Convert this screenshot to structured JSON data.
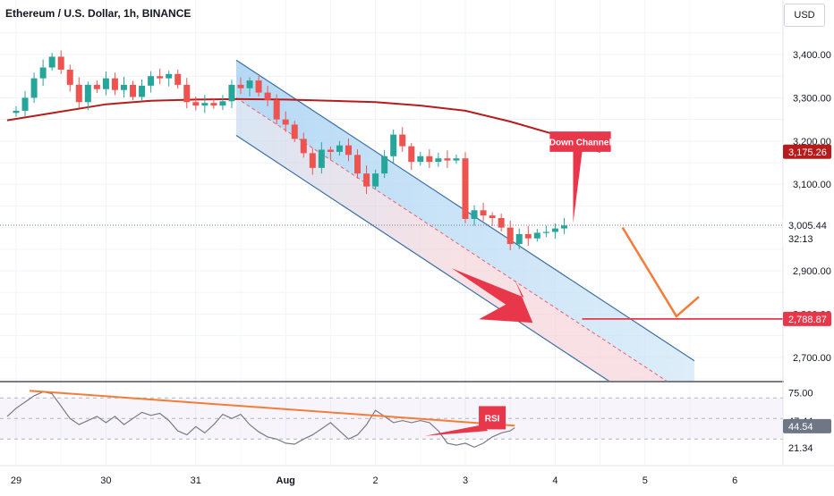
{
  "header": {
    "symbol_title": "Ethereum / U.S. Dollar, 1h, BINANCE",
    "currency_button": "USD"
  },
  "colors": {
    "bull": "#26a69a",
    "bear": "#ef5350",
    "ma": "#b71c1c",
    "channel": "#3a6ea5",
    "annotation_red": "#e8374a",
    "orange": "#f57c37",
    "rsi_line": "#787b86"
  },
  "chart_data": [
    {
      "type": "candlestick",
      "title": "Ethereum / U.S. Dollar, 1h, BINANCE",
      "x_tick_labels": [
        "29",
        "30",
        "31",
        "Aug",
        "2",
        "3",
        "4",
        "5",
        "6"
      ],
      "y_tick_labels": [
        "3,400.00",
        "3,300.00",
        "3,200.00",
        "3,100.00",
        "2,900.00",
        "2,800.00",
        "2,700.00"
      ],
      "y_ticks": [
        3400,
        3300,
        3200,
        3100,
        2900,
        2800,
        2700
      ],
      "ylim": [
        2645,
        3525
      ],
      "x_range_days": [
        29.0,
        37.0
      ],
      "grid": true,
      "price_labels": [
        {
          "text": "3,175.26",
          "value": 3175.26,
          "role": "moving-average"
        },
        {
          "text": "3,005.44",
          "value": 3005.44,
          "role": "last-price"
        },
        {
          "text": "32:13",
          "value": 3005.44,
          "role": "countdown"
        },
        {
          "text": "2,788.87",
          "value": 2788.87,
          "role": "target"
        }
      ],
      "target_level": 2788.87,
      "last_price": 3005.44,
      "moving_average": {
        "points": [
          [
            28.9,
            3248
          ],
          [
            29.5,
            3268
          ],
          [
            30.0,
            3285
          ],
          [
            30.5,
            3293
          ],
          [
            31.0,
            3296
          ],
          [
            31.5,
            3297
          ],
          [
            32.0,
            3296
          ],
          [
            32.5,
            3293
          ],
          [
            33.0,
            3290
          ],
          [
            33.5,
            3282
          ],
          [
            34.0,
            3270
          ],
          [
            34.5,
            3245
          ],
          [
            35.0,
            3215
          ],
          [
            35.5,
            3175
          ]
        ]
      },
      "down_channel": {
        "upper": [
          [
            31.45,
            3387
          ],
          [
            36.55,
            2692
          ]
        ],
        "lower": [
          [
            31.45,
            3213
          ],
          [
            36.55,
            2515
          ]
        ],
        "mid": [
          [
            31.45,
            3300
          ],
          [
            36.55,
            2603
          ]
        ]
      },
      "annotations": [
        {
          "text": "Down Channel"
        }
      ],
      "candles": [
        [
          29.0,
          3265,
          3270
        ],
        [
          29.1,
          3270,
          3300
        ],
        [
          29.2,
          3300,
          3345
        ],
        [
          29.3,
          3345,
          3370
        ],
        [
          29.4,
          3370,
          3395
        ],
        [
          29.5,
          3395,
          3365
        ],
        [
          29.6,
          3365,
          3330
        ],
        [
          29.7,
          3330,
          3290
        ],
        [
          29.8,
          3290,
          3330
        ],
        [
          29.9,
          3330,
          3320
        ],
        [
          30.0,
          3320,
          3345
        ],
        [
          30.1,
          3345,
          3318
        ],
        [
          30.2,
          3318,
          3330
        ],
        [
          30.3,
          3330,
          3302
        ],
        [
          30.4,
          3302,
          3328
        ],
        [
          30.5,
          3328,
          3350
        ],
        [
          30.6,
          3350,
          3345
        ],
        [
          30.7,
          3345,
          3355
        ],
        [
          30.8,
          3355,
          3330
        ],
        [
          30.9,
          3330,
          3290
        ],
        [
          31.0,
          3290,
          3282
        ],
        [
          31.1,
          3282,
          3288
        ],
        [
          31.2,
          3288,
          3282
        ],
        [
          31.3,
          3282,
          3292
        ],
        [
          31.4,
          3292,
          3330
        ],
        [
          31.5,
          3330,
          3322
        ],
        [
          31.6,
          3322,
          3340
        ],
        [
          31.7,
          3340,
          3312
        ],
        [
          31.8,
          3312,
          3295
        ],
        [
          31.9,
          3295,
          3250
        ],
        [
          32.0,
          3250,
          3238
        ],
        [
          32.1,
          3238,
          3205
        ],
        [
          32.2,
          3205,
          3172
        ],
        [
          32.3,
          3172,
          3138
        ],
        [
          32.4,
          3138,
          3180
        ],
        [
          32.5,
          3180,
          3175
        ],
        [
          32.6,
          3175,
          3190
        ],
        [
          32.7,
          3190,
          3168
        ],
        [
          32.8,
          3168,
          3125
        ],
        [
          32.9,
          3125,
          3095
        ],
        [
          33.0,
          3095,
          3125
        ],
        [
          33.1,
          3125,
          3165
        ],
        [
          33.2,
          3165,
          3215
        ],
        [
          33.3,
          3215,
          3188
        ],
        [
          33.4,
          3188,
          3152
        ],
        [
          33.5,
          3152,
          3165
        ],
        [
          33.6,
          3165,
          3152
        ],
        [
          33.7,
          3152,
          3160
        ],
        [
          33.8,
          3160,
          3155
        ],
        [
          33.9,
          3155,
          3160
        ],
        [
          34.0,
          3160,
          3020
        ],
        [
          34.1,
          3020,
          3040
        ],
        [
          34.2,
          3040,
          3028
        ],
        [
          34.3,
          3028,
          3022
        ],
        [
          34.4,
          3022,
          3000
        ],
        [
          34.5,
          3000,
          2962
        ],
        [
          34.6,
          2962,
          2985
        ],
        [
          34.7,
          2985,
          2975
        ],
        [
          34.8,
          2975,
          2988
        ],
        [
          34.9,
          2988,
          2990
        ],
        [
          35.0,
          2990,
          2998
        ],
        [
          35.1,
          2998,
          3005
        ]
      ]
    },
    {
      "type": "line",
      "title": "RSI",
      "y_tick_labels": [
        "75.00",
        "47.44",
        "44.54",
        "21.34"
      ],
      "ylim": [
        5,
        85
      ],
      "overbought": 70,
      "oversold": 30,
      "middle": 50,
      "trendline": [
        [
          29.15,
          77
        ],
        [
          34.55,
          43
        ]
      ],
      "annotations": [
        {
          "text": "RSI"
        }
      ],
      "points": [
        [
          28.9,
          52
        ],
        [
          29.0,
          60
        ],
        [
          29.1,
          66
        ],
        [
          29.2,
          72
        ],
        [
          29.3,
          76
        ],
        [
          29.4,
          74
        ],
        [
          29.5,
          62
        ],
        [
          29.6,
          50
        ],
        [
          29.7,
          44
        ],
        [
          29.8,
          48
        ],
        [
          29.9,
          52
        ],
        [
          30.0,
          46
        ],
        [
          30.1,
          52
        ],
        [
          30.2,
          44
        ],
        [
          30.3,
          50
        ],
        [
          30.4,
          56
        ],
        [
          30.5,
          53
        ],
        [
          30.6,
          55
        ],
        [
          30.7,
          48
        ],
        [
          30.8,
          38
        ],
        [
          30.9,
          34
        ],
        [
          31.0,
          42
        ],
        [
          31.1,
          36
        ],
        [
          31.2,
          44
        ],
        [
          31.3,
          54
        ],
        [
          31.4,
          50
        ],
        [
          31.5,
          54
        ],
        [
          31.6,
          44
        ],
        [
          31.7,
          37
        ],
        [
          31.8,
          32
        ],
        [
          31.9,
          30
        ],
        [
          32.0,
          26
        ],
        [
          32.1,
          25
        ],
        [
          32.2,
          30
        ],
        [
          32.3,
          34
        ],
        [
          32.4,
          40
        ],
        [
          32.5,
          46
        ],
        [
          32.6,
          38
        ],
        [
          32.7,
          30
        ],
        [
          32.8,
          34
        ],
        [
          32.9,
          44
        ],
        [
          33.0,
          58
        ],
        [
          33.1,
          52
        ],
        [
          33.2,
          46
        ],
        [
          33.3,
          48
        ],
        [
          33.4,
          46
        ],
        [
          33.5,
          48
        ],
        [
          33.6,
          46
        ],
        [
          33.7,
          38
        ],
        [
          33.8,
          26
        ],
        [
          33.9,
          24
        ],
        [
          34.0,
          26
        ],
        [
          34.1,
          22
        ],
        [
          34.2,
          26
        ],
        [
          34.3,
          32
        ],
        [
          34.4,
          36
        ],
        [
          34.5,
          38
        ],
        [
          34.55,
          41
        ]
      ]
    }
  ]
}
